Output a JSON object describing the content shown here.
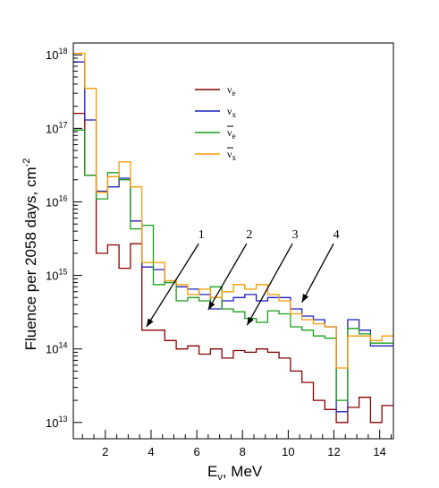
{
  "chart_data": {
    "type": "line",
    "step": true,
    "ylabel": "Fluence per 2058 days, cm",
    "ylabel_sup": "-2",
    "xlabel_main": "E",
    "xlabel_sub": "ν",
    "xlabel_rest": ", MeV",
    "xlim": [
      0.6,
      14.6
    ],
    "ylim": [
      6000000000000.0,
      1.45e+18
    ],
    "log_y": true,
    "x_ticks": [
      2,
      4,
      6,
      8,
      10,
      12,
      14
    ],
    "y_ticks": [
      {
        "value": 10000000000000.0,
        "base": "10",
        "exp": "13"
      },
      {
        "value": 100000000000000.0,
        "base": "10",
        "exp": "14"
      },
      {
        "value": 1000000000000000.0,
        "base": "10",
        "exp": "15"
      },
      {
        "value": 1e+16,
        "base": "10",
        "exp": "16"
      },
      {
        "value": 1e+17,
        "base": "10",
        "exp": "17"
      },
      {
        "value": 1e+18,
        "base": "10",
        "exp": "18"
      }
    ],
    "bin_edges": [
      0.6,
      1.1,
      1.6,
      2.1,
      2.6,
      3.1,
      3.6,
      4.1,
      4.6,
      5.1,
      5.6,
      6.1,
      6.6,
      7.1,
      7.6,
      8.1,
      8.6,
      9.1,
      9.6,
      10.1,
      10.6,
      11.1,
      11.6,
      12.1,
      12.6,
      13.1,
      13.6,
      14.1,
      14.6
    ],
    "series": [
      {
        "key": "nu_e",
        "name": "ν",
        "sub": "e",
        "bar": false,
        "color": "#8b0000",
        "values": [
          1.6e+17,
          2.3e+16,
          2000000000000000.0,
          2600000000000000.0,
          1250000000000000.0,
          2700000000000000.0,
          180000000000000.0,
          180000000000000.0,
          130000000000000.0,
          100000000000000.0,
          110000000000000.0,
          85000000000000.0,
          100000000000000.0,
          75000000000000.0,
          95000000000000.0,
          90000000000000.0,
          100000000000000.0,
          90000000000000.0,
          75000000000000.0,
          50000000000000.0,
          35000000000000.0,
          20000000000000.0,
          15000000000000.0,
          10000000000000.0,
          16000000000000.0,
          22000000000000.0,
          10000000000000.0,
          17000000000000.0
        ]
      },
      {
        "key": "nu_x",
        "name": "ν",
        "sub": "x",
        "bar": false,
        "color": "#1f1fbf",
        "values": [
          8e+17,
          1.3e+17,
          1.4e+16,
          1.6e+16,
          2.1e+16,
          5500000000000000.0,
          1300000000000000.0,
          1200000000000000.0,
          800000000000000.0,
          700000000000000.0,
          650000000000000.0,
          550000000000000.0,
          350000000000000.0,
          450000000000000.0,
          500000000000000.0,
          550000000000000.0,
          450000000000000.0,
          500000000000000.0,
          500000000000000.0,
          350000000000000.0,
          280000000000000.0,
          250000000000000.0,
          200000000000000.0,
          14000000000000.0,
          250000000000000.0,
          180000000000000.0,
          110000000000000.0,
          110000000000000.0
        ]
      },
      {
        "key": "anti_nu_e",
        "name": "ν",
        "sub": "e",
        "bar": true,
        "color": "#1a9e1a",
        "values": [
          9.5e+16,
          2.3e+16,
          1.1e+16,
          2.5e+16,
          2e+16,
          4300000000000000.0,
          4800000000000000.0,
          750000000000000.0,
          800000000000000.0,
          450000000000000.0,
          500000000000000.0,
          450000000000000.0,
          700000000000000.0,
          350000000000000.0,
          320000000000000.0,
          260000000000000.0,
          230000000000000.0,
          330000000000000.0,
          300000000000000.0,
          200000000000000.0,
          180000000000000.0,
          150000000000000.0,
          140000000000000.0,
          20000000000000.0,
          190000000000000.0,
          160000000000000.0,
          120000000000000.0,
          120000000000000.0
        ]
      },
      {
        "key": "anti_nu_x",
        "name": "ν",
        "sub": "x",
        "bar": true,
        "color": "#ff9900",
        "values": [
          1.05e+18,
          3.5e+17,
          1.35e+16,
          2.2e+16,
          3.5e+16,
          1.6e+16,
          1500000000000000.0,
          1500000000000000.0,
          850000000000000.0,
          750000000000000.0,
          550000000000000.0,
          650000000000000.0,
          500000000000000.0,
          600000000000000.0,
          750000000000000.0,
          650000000000000.0,
          750000000000000.0,
          550000000000000.0,
          450000000000000.0,
          300000000000000.0,
          250000000000000.0,
          220000000000000.0,
          200000000000000.0,
          55000000000000.0,
          150000000000000.0,
          150000000000000.0,
          130000000000000.0,
          150000000000000.0
        ]
      }
    ],
    "annotations": [
      {
        "label": "1",
        "text_x": 6.2,
        "text_y": 3200000000000000.0,
        "tip_x": 3.8,
        "tip_y": 200000000000000.0
      },
      {
        "label": "2",
        "text_x": 8.3,
        "text_y": 3200000000000000.0,
        "tip_x": 6.5,
        "tip_y": 340000000000000.0
      },
      {
        "label": "3",
        "text_x": 10.3,
        "text_y": 3200000000000000.0,
        "tip_x": 8.2,
        "tip_y": 210000000000000.0
      },
      {
        "label": "4",
        "text_x": 12.1,
        "text_y": 3200000000000000.0,
        "tip_x": 10.6,
        "tip_y": 430000000000000.0
      }
    ],
    "grid": false,
    "legend_position": "top-center"
  }
}
